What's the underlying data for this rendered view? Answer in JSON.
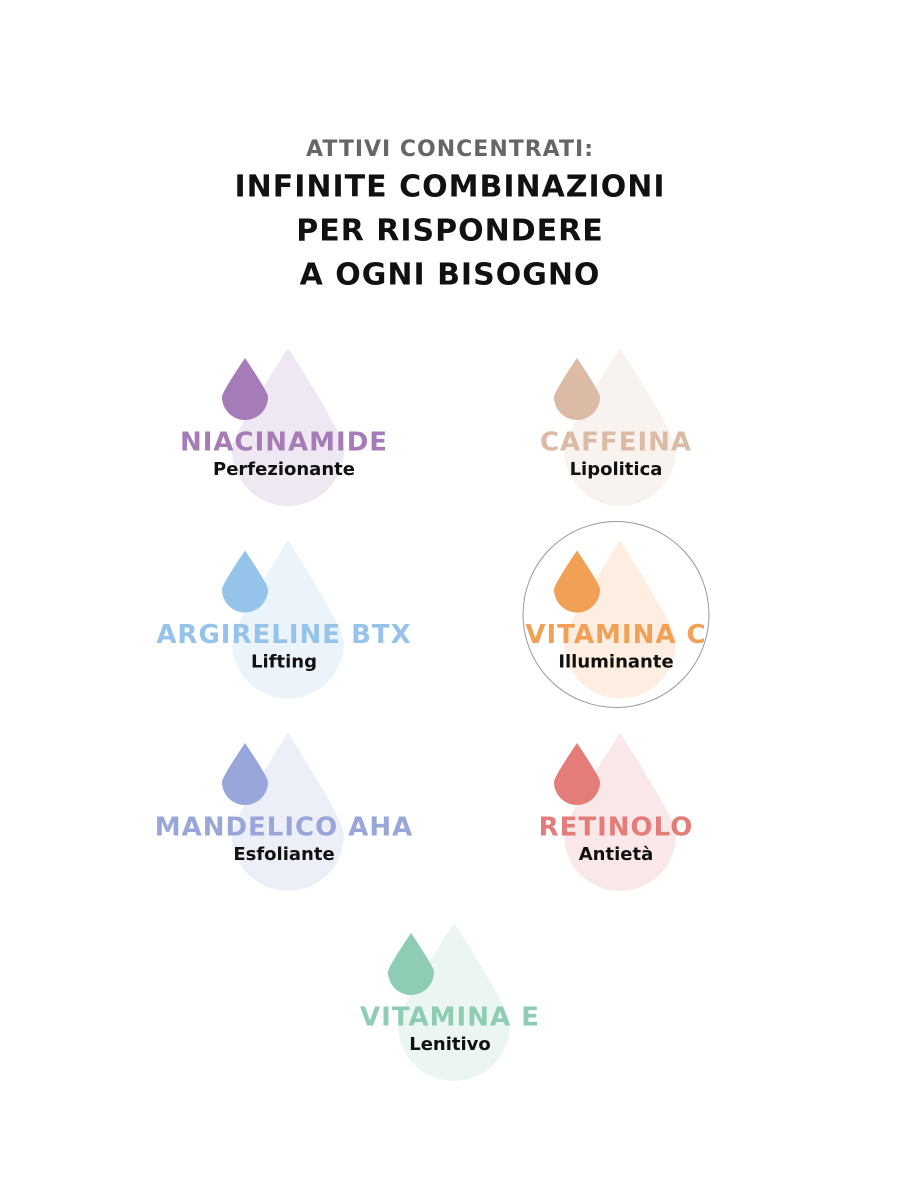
{
  "header": {
    "subtitle": "ATTIVI CONCENTRATI:",
    "title": [
      "INFINITE COMBINAZIONI",
      "PER RISPONDERE",
      "A OGNI BISOGNO"
    ]
  },
  "items": [
    {
      "name": "NIACINAMIDE",
      "benefit": "Perfezionante",
      "color": "#a57cb8"
    },
    {
      "name": "CAFFEINA",
      "benefit": "Lipolitica",
      "color": "#dbbaa6"
    },
    {
      "name": "ARGIRELINE BTX",
      "benefit": "Lifting",
      "color": "#95c3ea"
    },
    {
      "name": "VITAMINA C",
      "benefit": "Illuminante",
      "color": "#f2a056",
      "selected": true
    },
    {
      "name": "MANDELICO AHA",
      "benefit": "Esfoliante",
      "color": "#98a6d9"
    },
    {
      "name": "RETINOLO",
      "benefit": "Antietà",
      "color": "#e47c7a"
    },
    {
      "name": "VITAMINA E",
      "benefit": "Lenitivo",
      "color": "#8ecdb3"
    }
  ]
}
